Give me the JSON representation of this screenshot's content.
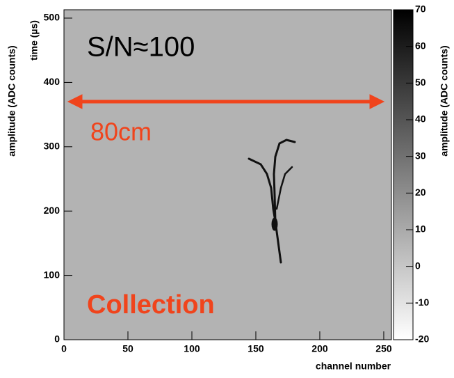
{
  "chart_data": {
    "type": "heatmap",
    "x_label": "channel number",
    "y_label": "time (µs)",
    "left_label": "amplitude (ADC counts)",
    "colorbar_label": "amplitude (ADC counts)",
    "annotations": [
      "S/N≈100",
      "80cm",
      "Collection"
    ],
    "xlim": [
      0,
      256
    ],
    "xticks": [
      0,
      50,
      100,
      150,
      200,
      250
    ],
    "ylim": [
      0,
      513
    ],
    "yticks": [
      0,
      100,
      200,
      300,
      400,
      500
    ],
    "zlim": [
      -20,
      70
    ],
    "zticks": [
      -20,
      -10,
      0,
      10,
      20,
      30,
      40,
      50,
      60,
      70
    ],
    "colormap": [
      "#ffffff",
      "#000000"
    ],
    "background": "#b3b3b3",
    "annotation_color": "#f0441c"
  }
}
